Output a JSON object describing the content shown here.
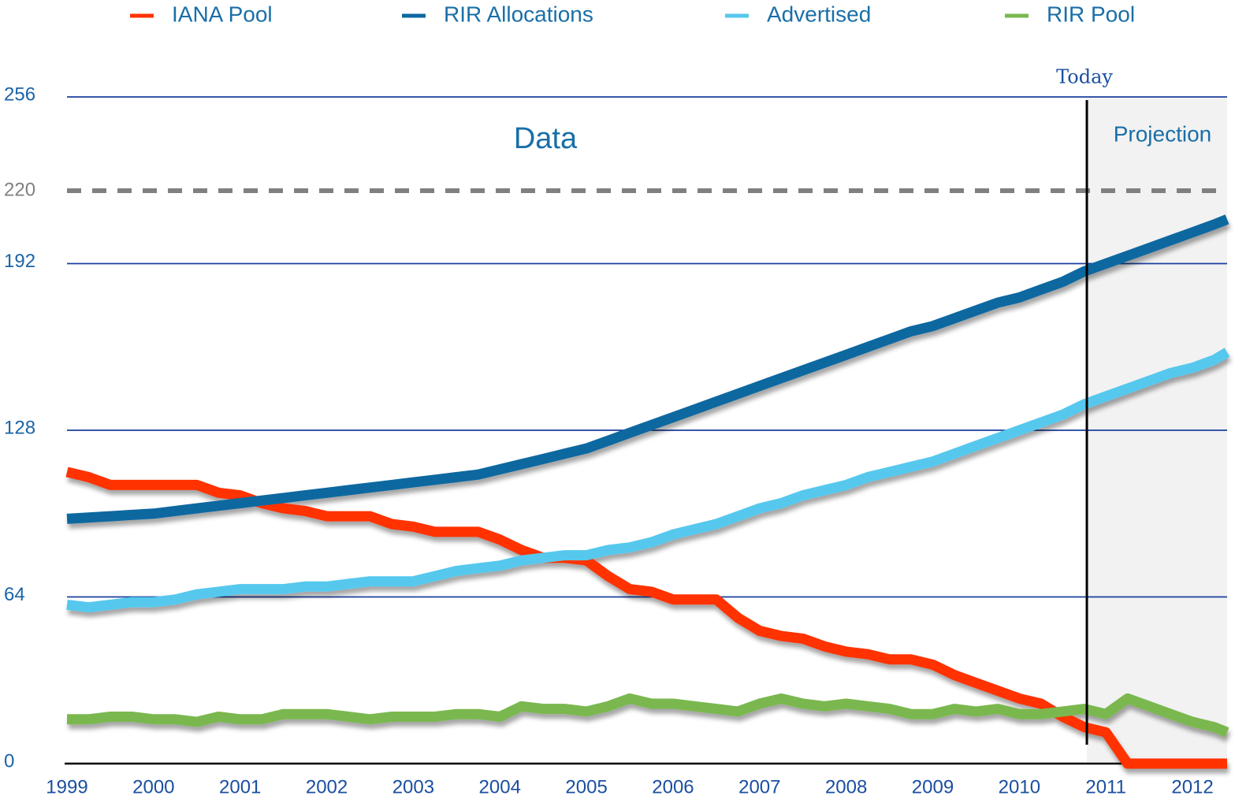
{
  "chart_data": {
    "type": "line",
    "x": [
      1999,
      1999.25,
      1999.5,
      1999.75,
      2000,
      2000.25,
      2000.5,
      2000.75,
      2001,
      2001.25,
      2001.5,
      2001.75,
      2002,
      2002.25,
      2002.5,
      2002.75,
      2003,
      2003.25,
      2003.5,
      2003.75,
      2004,
      2004.25,
      2004.5,
      2004.75,
      2005,
      2005.25,
      2005.5,
      2005.75,
      2006,
      2006.25,
      2006.5,
      2006.75,
      2007,
      2007.25,
      2007.5,
      2007.75,
      2008,
      2008.25,
      2008.5,
      2008.75,
      2009,
      2009.25,
      2009.5,
      2009.75,
      2010,
      2010.25,
      2010.5,
      2010.75,
      2011,
      2011.25,
      2011.5,
      2011.75,
      2012,
      2012.25,
      2012.4
    ],
    "series": [
      {
        "name": "IANA Pool",
        "color": "#ff3300",
        "values": [
          112,
          110,
          107,
          107,
          107,
          107,
          107,
          104,
          103,
          100,
          98,
          97,
          95,
          95,
          95,
          92,
          91,
          89,
          89,
          89,
          86,
          82,
          79,
          79,
          78,
          72,
          67,
          66,
          63,
          63,
          63,
          56,
          51,
          49,
          48,
          45,
          43,
          42,
          40,
          40,
          38,
          34,
          31,
          28,
          25,
          23,
          18,
          14,
          12,
          0,
          0,
          0,
          0,
          0,
          0
        ]
      },
      {
        "name": "RIR Allocations",
        "color": "#0b68a0",
        "values": [
          94,
          94.5,
          95,
          95.5,
          96,
          97,
          98,
          99,
          100,
          101,
          102,
          103,
          104,
          105,
          106,
          107,
          108,
          109,
          110,
          111,
          113,
          115,
          117,
          119,
          121,
          124,
          127,
          130,
          133,
          136,
          139,
          142,
          145,
          148,
          151,
          154,
          157,
          160,
          163,
          166,
          168,
          171,
          174,
          177,
          179,
          182,
          185,
          189,
          192,
          195,
          198,
          201,
          204,
          207,
          209
        ]
      },
      {
        "name": "Advertised",
        "color": "#56c8ee",
        "values": [
          61,
          60,
          61,
          62,
          62,
          63,
          65,
          66,
          67,
          67,
          67,
          68,
          68,
          69,
          70,
          70,
          70,
          72,
          74,
          75,
          76,
          78,
          79,
          80,
          80,
          82,
          83,
          85,
          88,
          90,
          92,
          95,
          98,
          100,
          103,
          105,
          107,
          110,
          112,
          114,
          116,
          119,
          122,
          125,
          128,
          131,
          134,
          138,
          141,
          144,
          147,
          150,
          152,
          155,
          158
        ]
      },
      {
        "name": "RIR Pool",
        "color": "#7ab84f",
        "values": [
          17,
          17,
          18,
          18,
          17,
          17,
          16,
          18,
          17,
          17,
          19,
          19,
          19,
          18,
          17,
          18,
          18,
          18,
          19,
          19,
          18,
          22,
          21,
          21,
          20,
          22,
          25,
          23,
          23,
          22,
          21,
          20,
          23,
          25,
          23,
          22,
          23,
          22,
          21,
          19,
          19,
          21,
          20,
          21,
          19,
          19,
          20,
          21,
          19,
          25,
          22,
          19,
          16,
          14,
          12
        ]
      }
    ],
    "xlim": [
      1999,
      2012.4
    ],
    "xticks": [
      1999,
      2000,
      2001,
      2002,
      2003,
      2004,
      2005,
      2006,
      2007,
      2008,
      2009,
      2010,
      2011,
      2012
    ],
    "ylim": [
      0,
      256
    ],
    "yticks": [
      0,
      64,
      128,
      192,
      256
    ],
    "threshold": 220,
    "today": 2010.78,
    "today_label": "Today",
    "data_label": "Data",
    "projection_label": "Projection",
    "grid": true,
    "legend": "top"
  }
}
